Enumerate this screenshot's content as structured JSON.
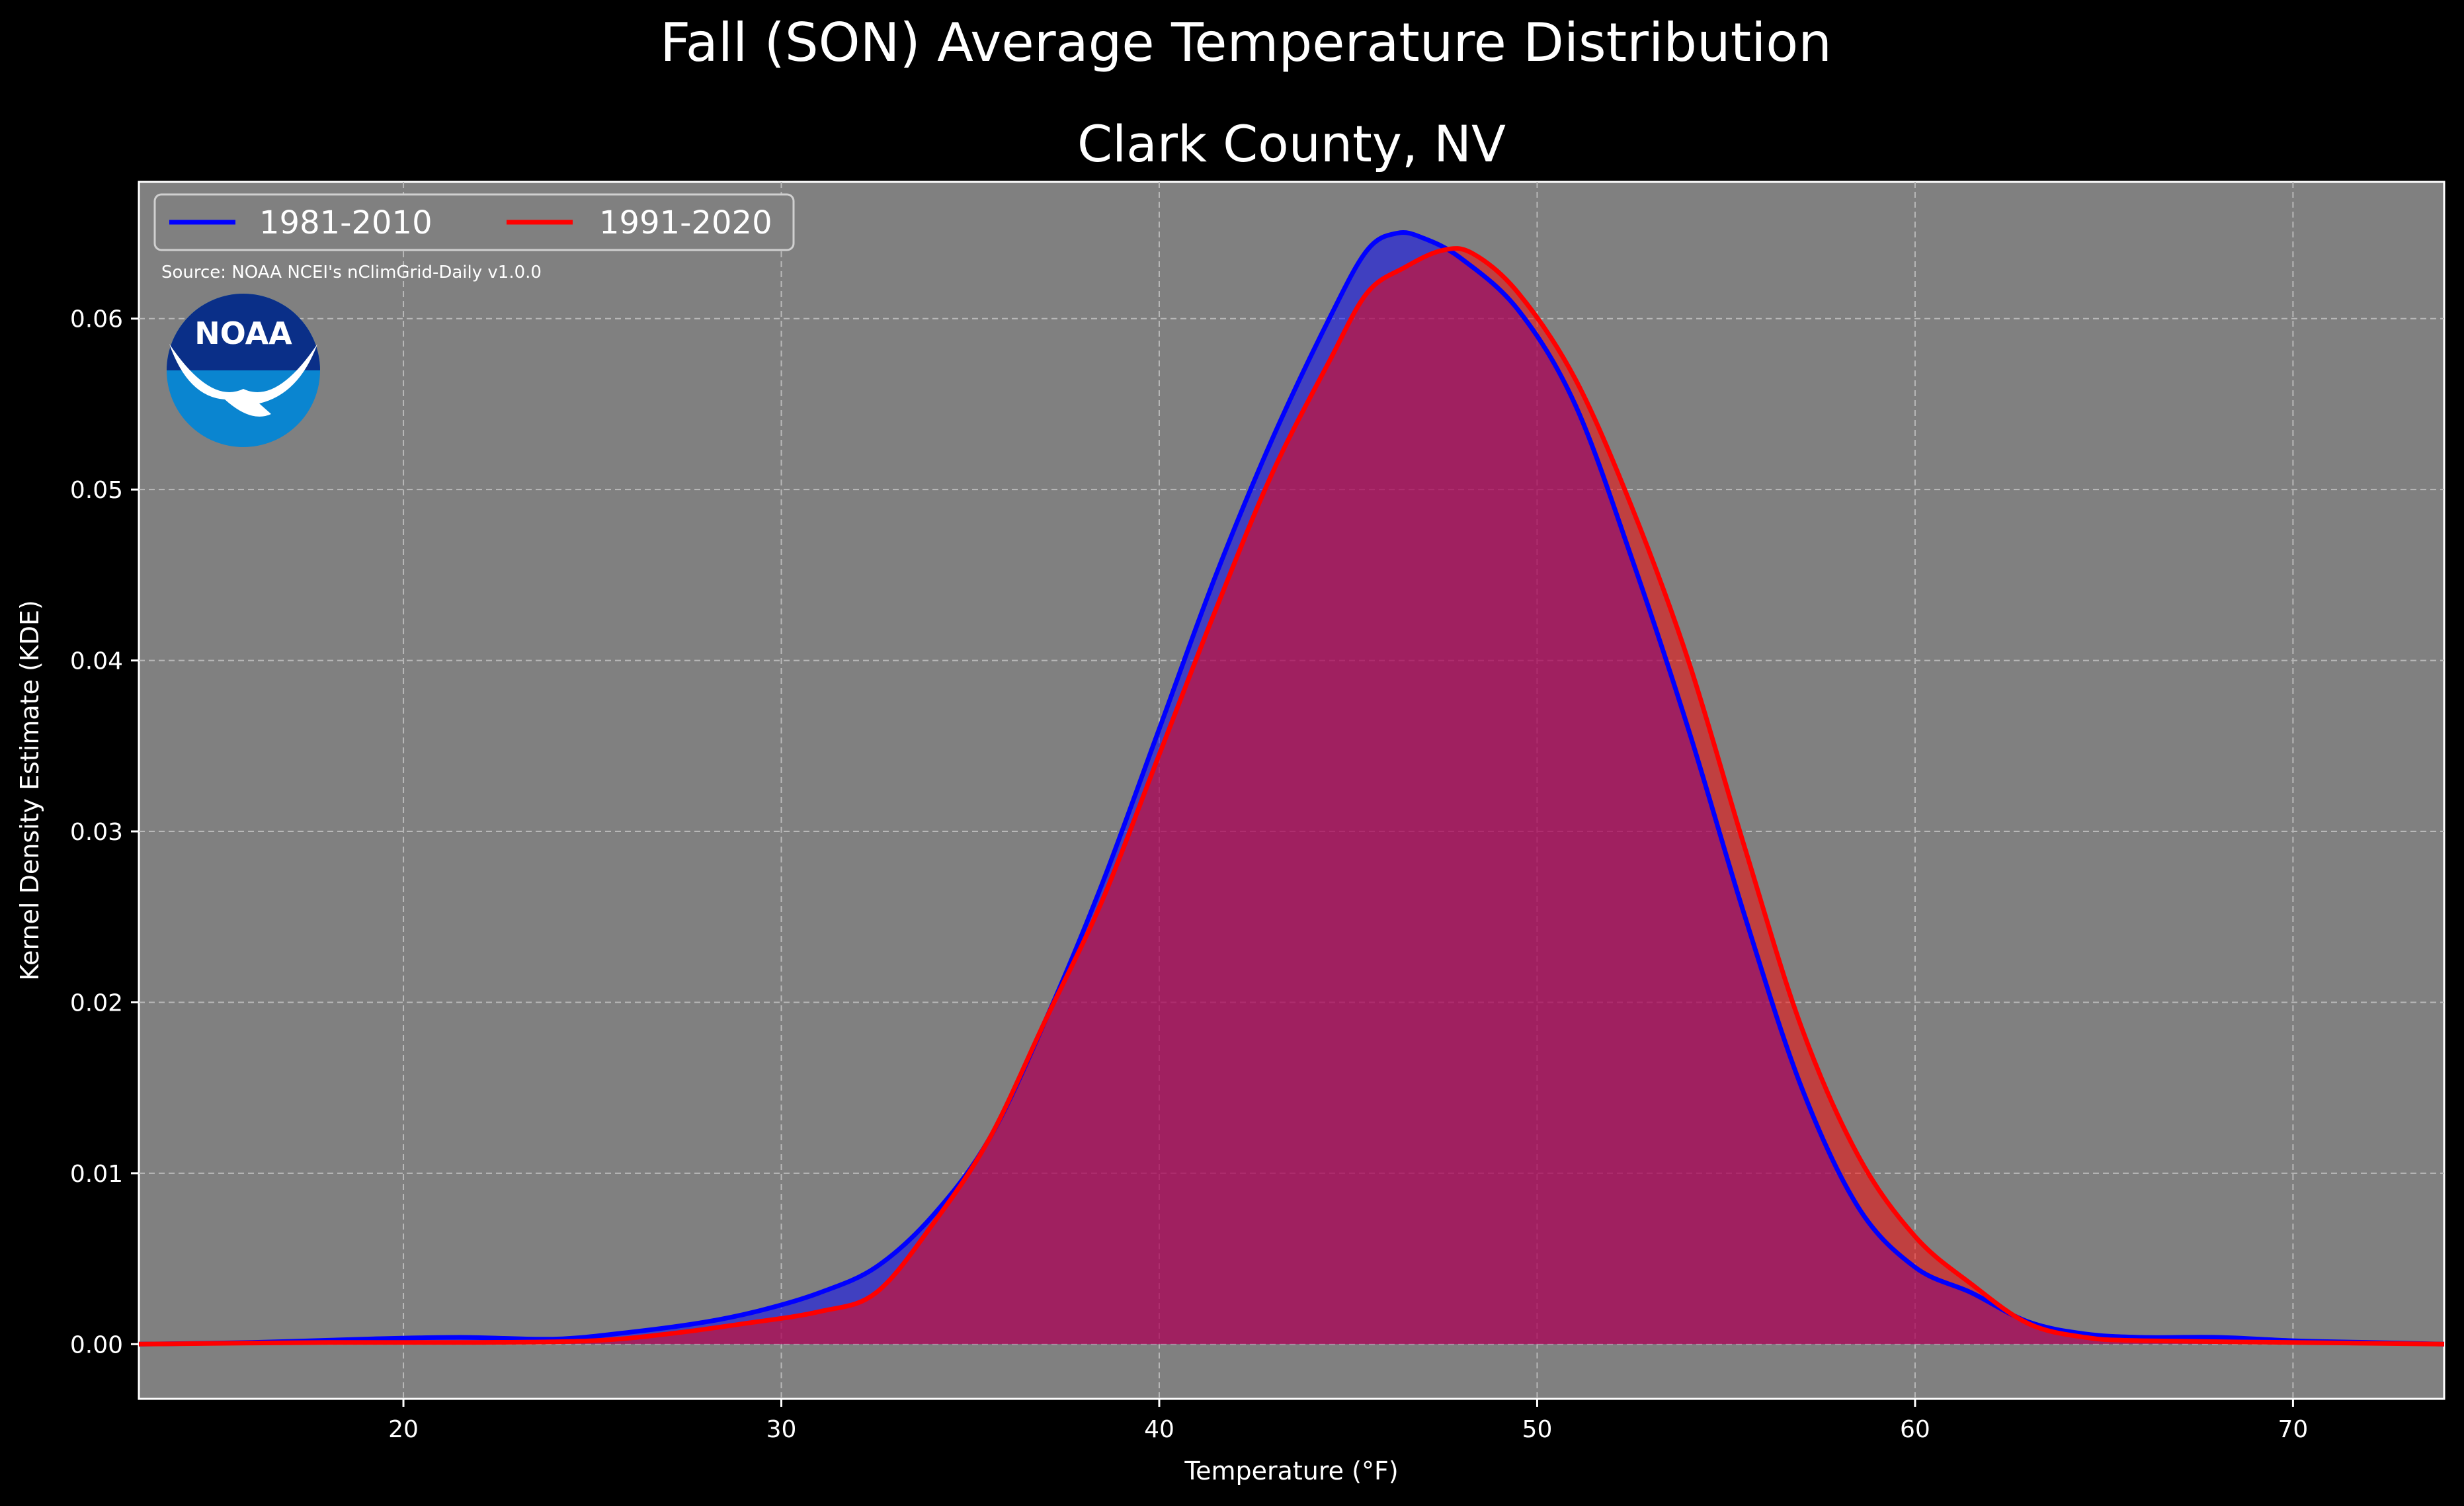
{
  "chart_data": {
    "type": "area",
    "suptitle": "Fall (SON) Average Temperature Distribution",
    "title": "Clark County, NV",
    "xlabel": "Temperature ($^\\circ$F)",
    "xlabel_display": "Temperature (°F)",
    "ylabel": "Kernel Density Estimate (KDE)",
    "xlim": [
      13,
      74
    ],
    "ylim": [
      -0.0032,
      0.068
    ],
    "xticks": [
      20,
      30,
      40,
      50,
      60,
      70
    ],
    "yticks": [
      0.0,
      0.01,
      0.02,
      0.03,
      0.04,
      0.05,
      0.06
    ],
    "ytick_labels": [
      "0.00",
      "0.01",
      "0.02",
      "0.03",
      "0.04",
      "0.05",
      "0.06"
    ],
    "grid": true,
    "legend_position": "top-left",
    "source_note": "Source: NOAA NCEI's nClimGrid-Daily v1.0.0",
    "logo_text": "NOAA",
    "series": [
      {
        "name": "1981-2010",
        "color": "#0000ff",
        "points": [
          [
            13,
            0
          ],
          [
            16,
            0.0001
          ],
          [
            19,
            0.0003
          ],
          [
            21.5,
            0.0004
          ],
          [
            24,
            0.0003
          ],
          [
            26,
            0.0007
          ],
          [
            28,
            0.0013
          ],
          [
            29.5,
            0.002
          ],
          [
            31,
            0.003
          ],
          [
            32.5,
            0.0045
          ],
          [
            34,
            0.0075
          ],
          [
            35.5,
            0.012
          ],
          [
            37,
            0.019
          ],
          [
            38.5,
            0.027
          ],
          [
            40,
            0.036
          ],
          [
            41.5,
            0.045
          ],
          [
            43,
            0.053
          ],
          [
            44.5,
            0.06
          ],
          [
            45.5,
            0.064
          ],
          [
            46.3,
            0.065
          ],
          [
            47,
            0.0647
          ],
          [
            48,
            0.0635
          ],
          [
            49.5,
            0.0605
          ],
          [
            51,
            0.055
          ],
          [
            52.5,
            0.046
          ],
          [
            54,
            0.036
          ],
          [
            55.5,
            0.025
          ],
          [
            57,
            0.015
          ],
          [
            58.5,
            0.008
          ],
          [
            60,
            0.0045
          ],
          [
            61.5,
            0.003
          ],
          [
            63,
            0.0013
          ],
          [
            64.5,
            0.0006
          ],
          [
            66,
            0.0004
          ],
          [
            68,
            0.0004
          ],
          [
            70,
            0.0002
          ],
          [
            72,
            0.0001
          ],
          [
            74,
            0
          ]
        ]
      },
      {
        "name": "1991-2020",
        "color": "#ff0000",
        "points": [
          [
            13,
            0
          ],
          [
            18,
            0.0001
          ],
          [
            22,
            0.0001
          ],
          [
            25,
            0.0002
          ],
          [
            27,
            0.0006
          ],
          [
            29,
            0.0012
          ],
          [
            31,
            0.0019
          ],
          [
            32.5,
            0.003
          ],
          [
            34,
            0.007
          ],
          [
            35.5,
            0.012
          ],
          [
            37,
            0.019
          ],
          [
            38.5,
            0.026
          ],
          [
            40,
            0.0345
          ],
          [
            41.5,
            0.043
          ],
          [
            43,
            0.051
          ],
          [
            44.5,
            0.0575
          ],
          [
            45.5,
            0.0615
          ],
          [
            46.5,
            0.063
          ],
          [
            47.5,
            0.064
          ],
          [
            48.3,
            0.0638
          ],
          [
            49.5,
            0.0615
          ],
          [
            51,
            0.0565
          ],
          [
            52.5,
            0.049
          ],
          [
            54,
            0.04
          ],
          [
            55.5,
            0.029
          ],
          [
            57,
            0.0185
          ],
          [
            58.5,
            0.011
          ],
          [
            60,
            0.0063
          ],
          [
            61.5,
            0.0035
          ],
          [
            63,
            0.0012
          ],
          [
            64.5,
            0.0004
          ],
          [
            66,
            0.0002
          ],
          [
            70,
            0.0001
          ],
          [
            74,
            0
          ]
        ]
      }
    ]
  }
}
